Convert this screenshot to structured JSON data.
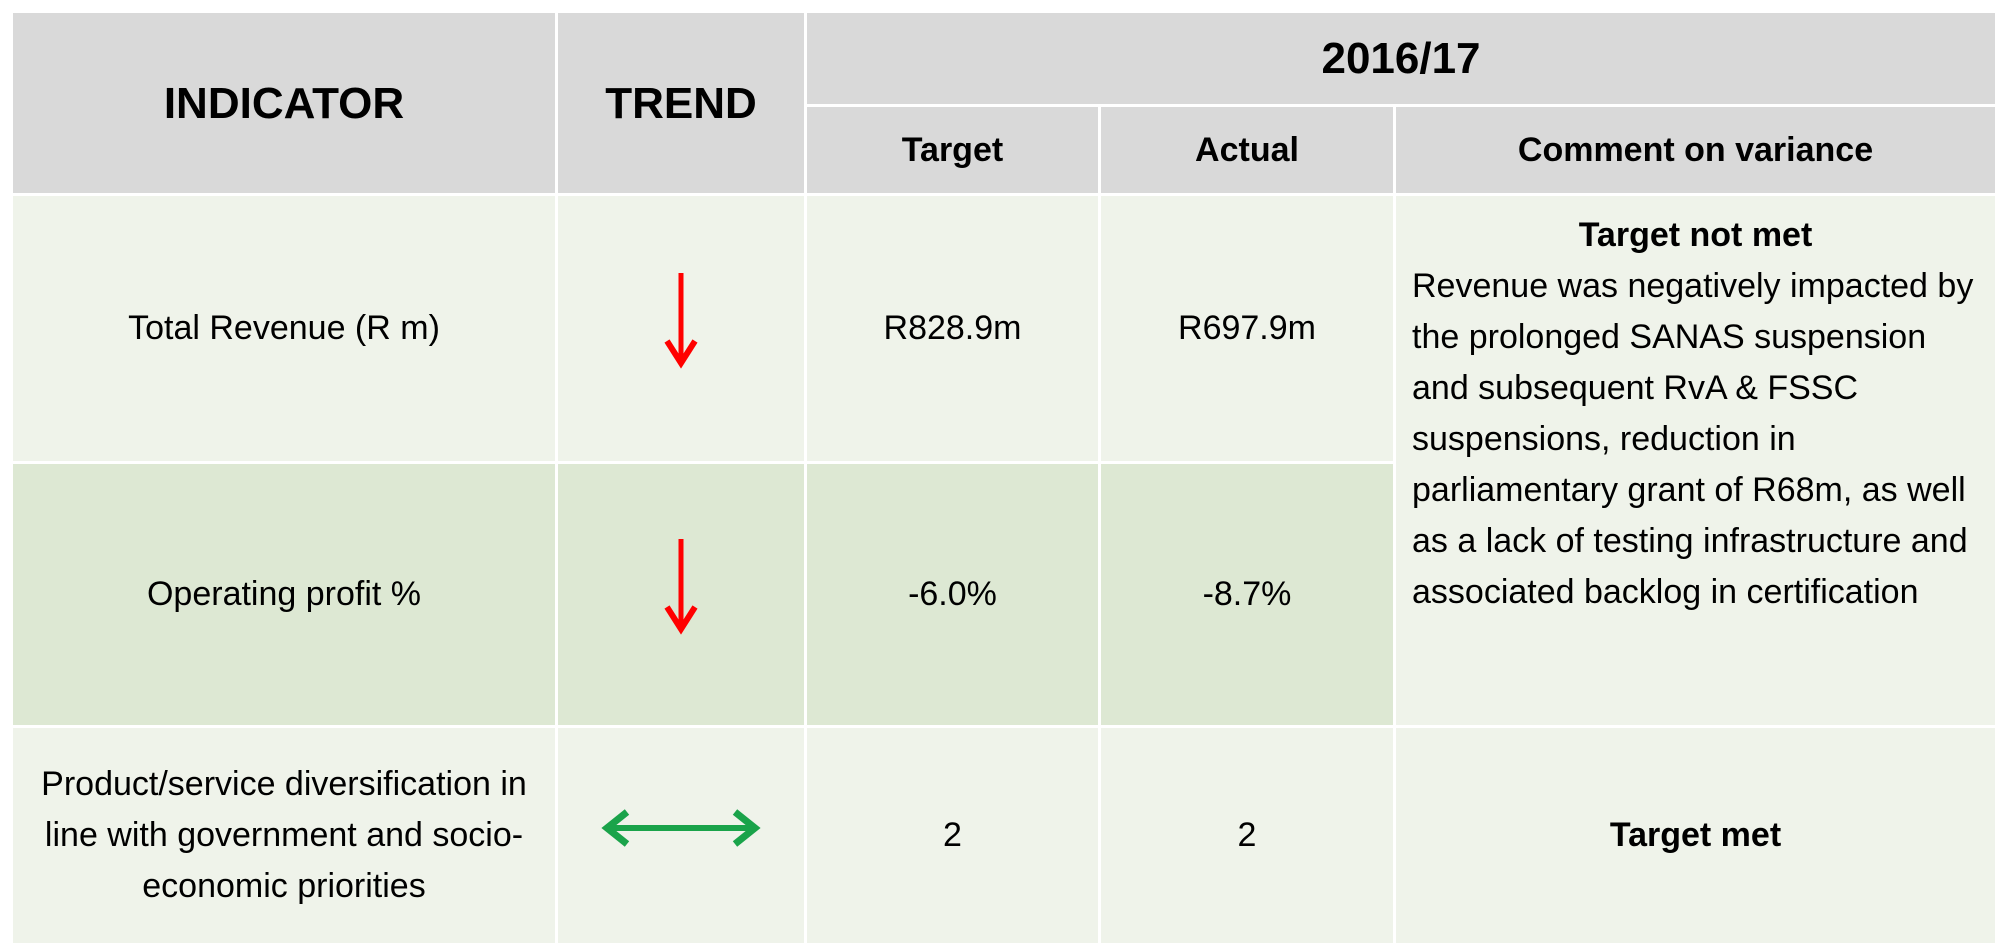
{
  "table": {
    "header": {
      "indicator": "INDICATOR",
      "trend": "TREND",
      "period": "2016/17",
      "target": "Target",
      "actual": "Actual",
      "comment": "Comment on variance"
    },
    "rows": [
      {
        "indicator": "Total Revenue (R m)",
        "target": "R828.9m",
        "actual": "R697.9m"
      },
      {
        "indicator": "Operating profit %",
        "target": "-6.0%",
        "actual": "-8.7%"
      },
      {
        "indicator": "Product/service diversification in line with government and socio-economic priorities",
        "target": "2",
        "actual": "2",
        "comment": "Target met"
      }
    ],
    "shared_comment": {
      "title": "Target not met",
      "text": "Revenue was negatively impacted by the prolonged SANAS suspension and subsequent RvA & FSSC suspensions, reduction in parliamentary grant of R68m, as well as a lack of testing infrastructure and associated backlog in certification"
    }
  }
}
